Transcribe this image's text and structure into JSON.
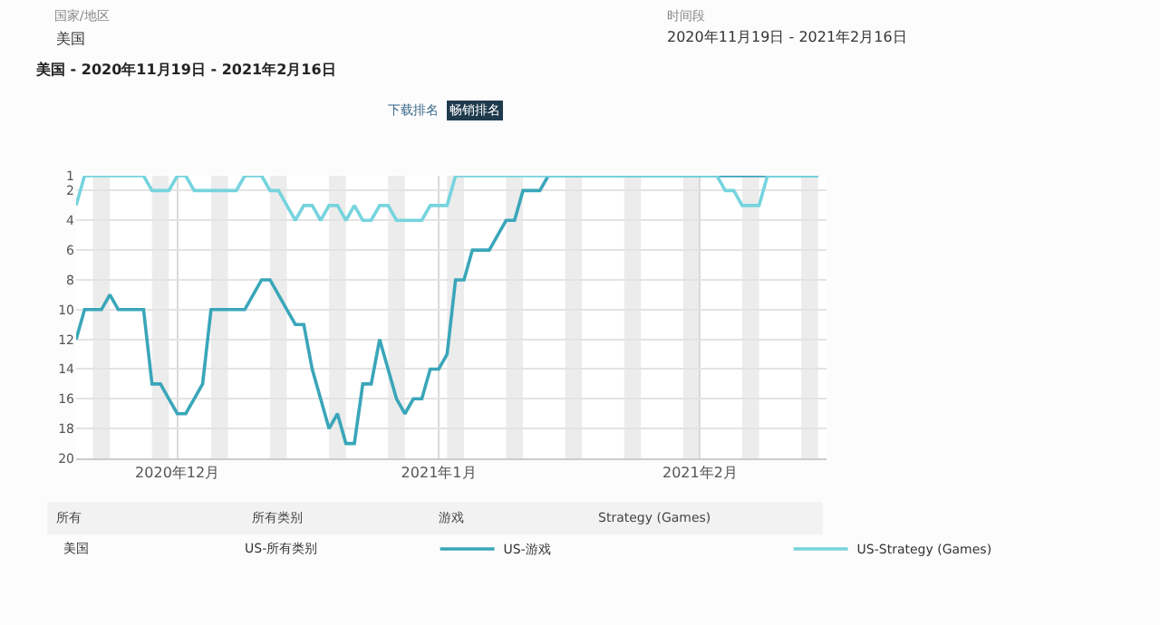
{
  "chart_data": {
    "type": "line",
    "title": "美国 - 2020年11月19日 - 2021年2月16日",
    "annotations": [
      "国家/地区",
      "美国",
      "时间段",
      "2020年11月19日 - 2021年2月16日",
      "下载排名",
      "畅销排名",
      "所有",
      "所有类别",
      "游戏",
      "Strategy (Games)",
      "美国",
      "US-所有类别"
    ],
    "x": [
      "2020-11-19",
      "2020-11-20",
      "2020-11-21",
      "2020-11-22",
      "2020-11-23",
      "2020-11-24",
      "2020-11-25",
      "2020-11-26",
      "2020-11-27",
      "2020-11-28",
      "2020-11-29",
      "2020-11-30",
      "2020-12-01",
      "2020-12-02",
      "2020-12-03",
      "2020-12-04",
      "2020-12-05",
      "2020-12-06",
      "2020-12-07",
      "2020-12-08",
      "2020-12-09",
      "2020-12-10",
      "2020-12-11",
      "2020-12-12",
      "2020-12-13",
      "2020-12-14",
      "2020-12-15",
      "2020-12-16",
      "2020-12-17",
      "2020-12-18",
      "2020-12-19",
      "2020-12-20",
      "2020-12-21",
      "2020-12-22",
      "2020-12-23",
      "2020-12-24",
      "2020-12-25",
      "2020-12-26",
      "2020-12-27",
      "2020-12-28",
      "2020-12-29",
      "2020-12-30",
      "2020-12-31",
      "2021-01-01",
      "2021-01-02",
      "2021-01-03",
      "2021-01-04",
      "2021-01-05",
      "2021-01-06",
      "2021-01-07",
      "2021-01-08",
      "2021-01-09",
      "2021-01-10",
      "2021-01-11",
      "2021-01-12",
      "2021-01-13",
      "2021-01-14",
      "2021-01-15",
      "2021-01-16",
      "2021-01-17",
      "2021-01-18",
      "2021-01-19",
      "2021-01-20",
      "2021-01-21",
      "2021-01-22",
      "2021-01-23",
      "2021-01-24",
      "2021-01-25",
      "2021-01-26",
      "2021-01-27",
      "2021-01-28",
      "2021-01-29",
      "2021-01-30",
      "2021-01-31",
      "2021-02-01",
      "2021-02-02",
      "2021-02-03",
      "2021-02-04",
      "2021-02-05",
      "2021-02-06",
      "2021-02-07",
      "2021-02-08",
      "2021-02-09",
      "2021-02-10",
      "2021-02-11",
      "2021-02-12",
      "2021-02-13",
      "2021-02-14",
      "2021-02-15"
    ],
    "series": [
      {
        "name": "US-游戏",
        "color": "#3aa6b9",
        "values": [
          12,
          10,
          10,
          10,
          9,
          10,
          10,
          10,
          10,
          15,
          15,
          16,
          17,
          17,
          16,
          15,
          10,
          10,
          10,
          10,
          10,
          9,
          8,
          8,
          9,
          10,
          11,
          11,
          14,
          16,
          18,
          17,
          19,
          19,
          15,
          15,
          12,
          14,
          16,
          17,
          16,
          16,
          14,
          14,
          13,
          8,
          8,
          6,
          6,
          6,
          5,
          4,
          4,
          2,
          2,
          2,
          1,
          1,
          1,
          1,
          1,
          1,
          1,
          1,
          1,
          1,
          1,
          1,
          1,
          1,
          1,
          1,
          1,
          1,
          1,
          1,
          1,
          1,
          1,
          1,
          1,
          1,
          1,
          1,
          1,
          1,
          1,
          1,
          1
        ]
      },
      {
        "name": "US-Strategy (Games)",
        "color": "#76d4de",
        "values": [
          3,
          1,
          1,
          1,
          1,
          1,
          1,
          1,
          1,
          2,
          2,
          2,
          1,
          1,
          2,
          2,
          2,
          2,
          2,
          2,
          1,
          1,
          1,
          2,
          2,
          3,
          4,
          3,
          3,
          4,
          3,
          3,
          4,
          3,
          4,
          4,
          3,
          3,
          4,
          4,
          4,
          4,
          3,
          3,
          3,
          1,
          1,
          1,
          1,
          1,
          1,
          1,
          1,
          1,
          1,
          1,
          1,
          1,
          1,
          1,
          1,
          1,
          1,
          1,
          1,
          1,
          1,
          1,
          1,
          1,
          1,
          1,
          1,
          1,
          1,
          1,
          1,
          2,
          2,
          3,
          3,
          3,
          1,
          1,
          1,
          1,
          1,
          1,
          1
        ]
      }
    ],
    "xlim": [
      "2020-11-19",
      "2021-02-16"
    ],
    "xticks": [
      {
        "value": "2020-12-01",
        "label": "2020年12月"
      },
      {
        "value": "2021-01-01",
        "label": "2021年1月"
      },
      {
        "value": "2021-02-01",
        "label": "2021年2月"
      }
    ],
    "ylim": [
      20,
      1
    ],
    "yticks": [
      1,
      2,
      4,
      6,
      8,
      10,
      12,
      14,
      16,
      18,
      20
    ],
    "bands": [
      {
        "axis": "x",
        "from": "2020-11-21",
        "to": "2020-11-23",
        "color": "#ececec"
      },
      {
        "axis": "x",
        "from": "2020-11-28",
        "to": "2020-11-30",
        "color": "#ececec"
      },
      {
        "axis": "x",
        "from": "2020-12-05",
        "to": "2020-12-07",
        "color": "#ececec"
      },
      {
        "axis": "x",
        "from": "2020-12-12",
        "to": "2020-12-14",
        "color": "#ececec"
      },
      {
        "axis": "x",
        "from": "2020-12-19",
        "to": "2020-12-21",
        "color": "#ececec"
      },
      {
        "axis": "x",
        "from": "2020-12-26",
        "to": "2020-12-28",
        "color": "#ececec"
      },
      {
        "axis": "x",
        "from": "2021-01-02",
        "to": "2021-01-04",
        "color": "#ececec"
      },
      {
        "axis": "x",
        "from": "2021-01-09",
        "to": "2021-01-11",
        "color": "#ececec"
      },
      {
        "axis": "x",
        "from": "2021-01-16",
        "to": "2021-01-18",
        "color": "#ececec"
      },
      {
        "axis": "x",
        "from": "2021-01-23",
        "to": "2021-01-25",
        "color": "#ececec"
      },
      {
        "axis": "x",
        "from": "2021-01-30",
        "to": "2021-02-01",
        "color": "#ececec"
      },
      {
        "axis": "x",
        "from": "2021-02-06",
        "to": "2021-02-08",
        "color": "#ececec"
      },
      {
        "axis": "x",
        "from": "2021-02-13",
        "to": "2021-02-15",
        "color": "#ececec"
      }
    ],
    "grid": true,
    "legend": "bottom",
    "marker": "none",
    "line_style": "solid"
  }
}
